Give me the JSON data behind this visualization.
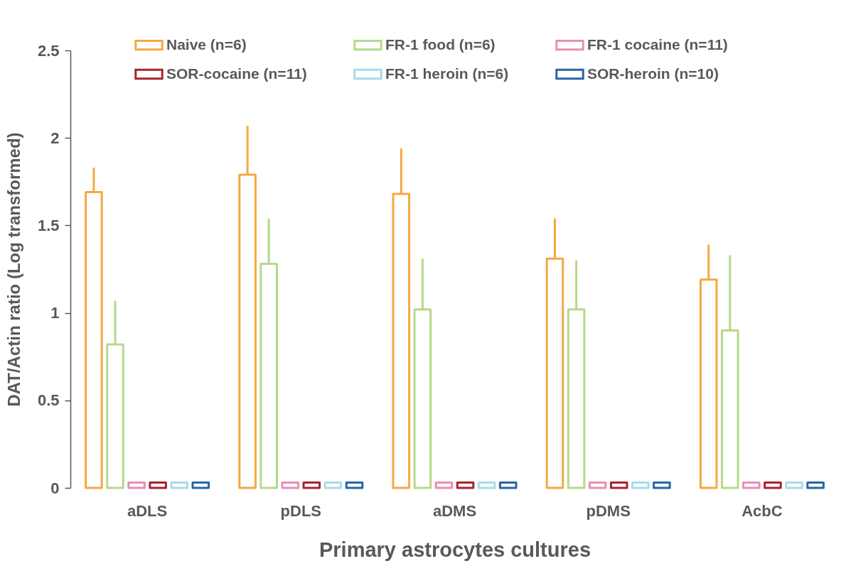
{
  "chart_data": {
    "type": "bar",
    "xlabel": "Primary astrocytes cultures",
    "ylabel": "DAT/Actin ratio (Log transformed)",
    "categories": [
      "aDLS",
      "pDLS",
      "aDMS",
      "pDMS",
      "AcbC"
    ],
    "ylim": [
      0,
      2.5
    ],
    "yticks": [
      0,
      0.5,
      1,
      1.5,
      2,
      2.5
    ],
    "legend": "top",
    "series": [
      {
        "name": "Naive (n=6)",
        "color": "#f5a843",
        "values": [
          1.69,
          1.79,
          1.68,
          1.31,
          1.19
        ],
        "errors": [
          [
            1.69,
            1.83
          ],
          [
            1.79,
            2.07
          ],
          [
            1.68,
            1.94
          ],
          [
            1.31,
            1.54
          ],
          [
            1.19,
            1.39
          ]
        ]
      },
      {
        "name": "FR-1 food (n=6)",
        "color": "#b5d98a",
        "values": [
          0.82,
          1.28,
          1.02,
          1.02,
          0.9
        ],
        "errors": [
          [
            0.82,
            1.07
          ],
          [
            1.28,
            1.54
          ],
          [
            1.02,
            1.31
          ],
          [
            1.02,
            1.3
          ],
          [
            0.9,
            1.33
          ]
        ]
      },
      {
        "name": "FR-1 cocaine (n=11)",
        "color": "#e88fb5",
        "values": [
          0.03,
          0.03,
          0.03,
          0.03,
          0.03
        ]
      },
      {
        "name": "SOR-cocaine (n=11)",
        "color": "#a8222f",
        "values": [
          0.03,
          0.03,
          0.03,
          0.03,
          0.03
        ]
      },
      {
        "name": "FR-1 heroin (n=6)",
        "color": "#a8dbe8",
        "values": [
          0.03,
          0.03,
          0.03,
          0.03,
          0.03
        ]
      },
      {
        "name": "SOR-heroin (n=10)",
        "color": "#2765a5",
        "values": [
          0.03,
          0.03,
          0.03,
          0.03,
          0.03
        ]
      }
    ]
  }
}
